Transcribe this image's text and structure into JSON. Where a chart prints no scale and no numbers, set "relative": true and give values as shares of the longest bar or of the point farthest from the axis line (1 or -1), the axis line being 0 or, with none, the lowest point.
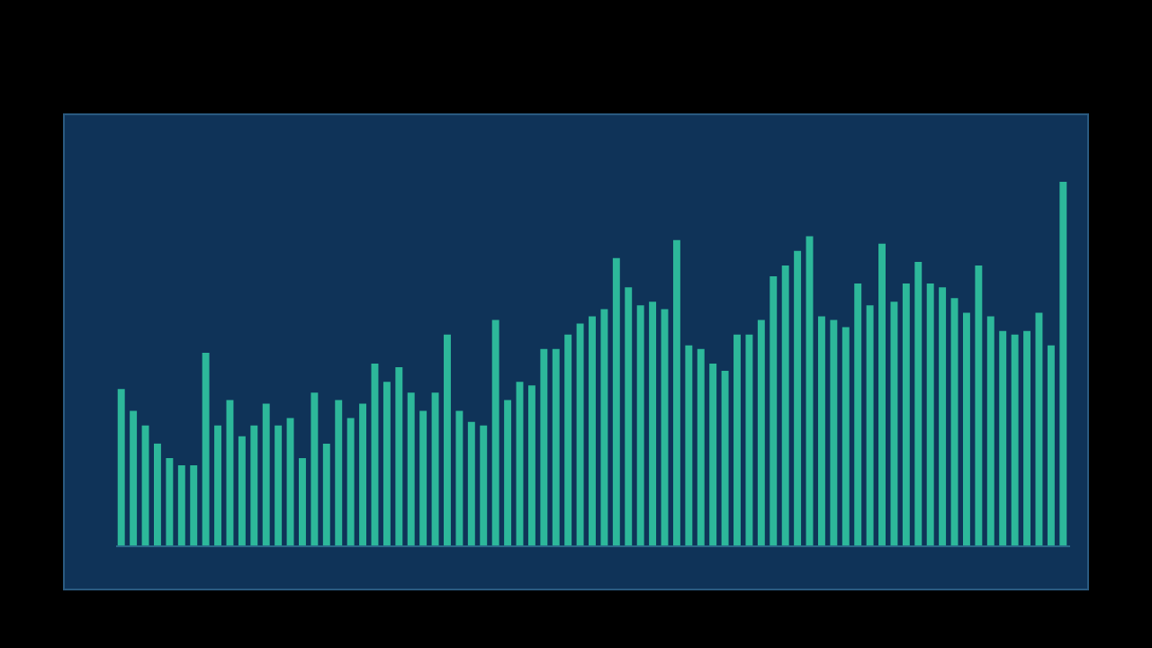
{
  "chart_data": {
    "type": "bar",
    "relative": true,
    "color": "#2db89a",
    "categories": [
      null,
      null,
      null,
      null,
      null,
      null,
      null,
      null,
      null,
      null,
      null,
      null,
      null,
      null,
      null,
      null,
      null,
      null,
      null,
      null,
      null,
      null,
      null,
      null,
      null,
      null,
      null,
      null,
      null,
      null,
      null,
      null,
      null,
      null,
      null,
      null,
      null,
      null,
      null,
      null,
      null,
      null,
      null,
      null,
      null,
      null,
      null,
      null,
      null,
      null,
      null,
      null,
      null,
      null,
      null,
      null,
      null,
      null,
      null,
      null,
      null,
      null,
      null,
      null,
      null,
      null,
      null,
      null,
      null,
      null,
      null,
      null,
      null,
      null,
      null,
      null,
      null,
      null,
      null
    ],
    "values": [
      0.43,
      0.37,
      0.33,
      0.28,
      0.24,
      0.22,
      0.22,
      0.53,
      0.33,
      0.4,
      0.3,
      0.33,
      0.39,
      0.33,
      0.35,
      0.24,
      0.42,
      0.28,
      0.4,
      0.35,
      0.39,
      0.5,
      0.45,
      0.49,
      0.42,
      0.37,
      0.42,
      0.58,
      0.37,
      0.34,
      0.33,
      0.62,
      0.4,
      0.45,
      0.44,
      0.54,
      0.54,
      0.58,
      0.61,
      0.63,
      0.65,
      0.79,
      0.71,
      0.66,
      0.67,
      0.65,
      0.84,
      0.55,
      0.54,
      0.5,
      0.48,
      0.58,
      0.58,
      0.62,
      0.74,
      0.77,
      0.81,
      0.85,
      0.63,
      0.62,
      0.6,
      0.72,
      0.66,
      0.83,
      0.67,
      0.72,
      0.78,
      0.72,
      0.71,
      0.68,
      0.64,
      0.77,
      0.63,
      0.59,
      0.58,
      0.59,
      0.64,
      0.55,
      1
    ]
  }
}
